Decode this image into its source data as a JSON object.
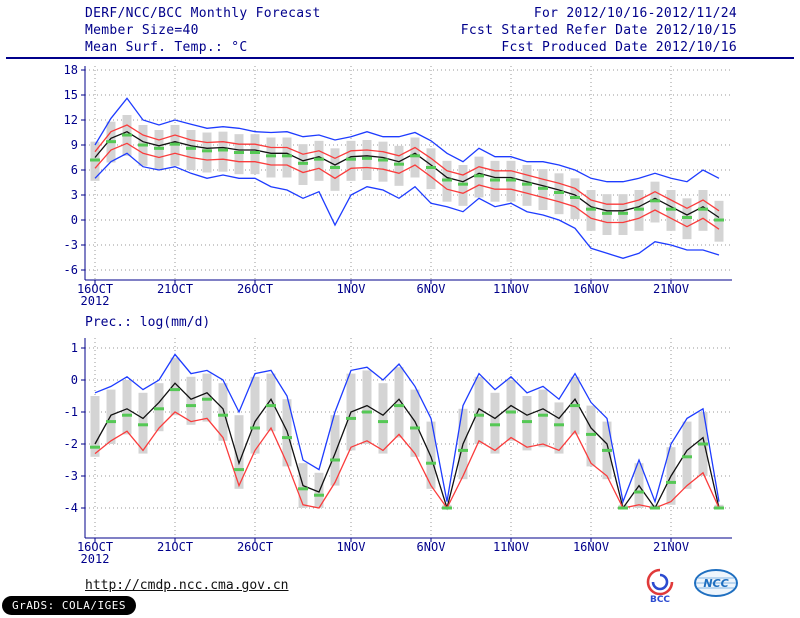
{
  "header": {
    "title": "DERF/NCC/BCC Monthly Forecast",
    "member_size": "Member Size=40",
    "var1_label": "Mean Surf. Temp.: °C",
    "for_range": "For 2012/10/16-2012/11/24",
    "refer_date": "Fcst Started Refer Date 2012/10/15",
    "produced_date": "Fcst Produced Date 2012/10/16"
  },
  "footer": {
    "url": "http://cmdp.ncc.cma.gov.cn",
    "stamp": "GrADS: COLA/IGES",
    "logos": [
      {
        "label": "BCC"
      },
      {
        "label": "NCC"
      }
    ]
  },
  "colors": {
    "text": "#00008b",
    "envelope": "#1e3cff",
    "quartile": "#fa3c3c",
    "median": "#111111",
    "marker": "#55c855",
    "bar": "#d4d4d4"
  },
  "chart_data": [
    {
      "type": "line",
      "title": "Mean Surf. Temp.: °C",
      "xlabel": "",
      "ylabel": "",
      "ylim": [
        -6,
        18
      ],
      "yticks": [
        -6,
        -3,
        0,
        3,
        6,
        9,
        12,
        15,
        18
      ],
      "x_tick_labels": [
        "16OCT",
        "21OCT",
        "26OCT",
        "1NOV",
        "6NOV",
        "11NOV",
        "16NOV",
        "21NOV"
      ],
      "x_tick_days": [
        0,
        5,
        10,
        16,
        21,
        26,
        31,
        36
      ],
      "x_year": "2012",
      "n_points": 40,
      "grid": "dotted",
      "legend": "none",
      "series": [
        {
          "name": "ensemble-max",
          "color": "#1e3cff",
          "values": [
            9.0,
            12.2,
            14.6,
            12.0,
            11.4,
            12.0,
            11.5,
            11.0,
            11.2,
            11.0,
            10.6,
            10.5,
            10.6,
            10.0,
            10.2,
            9.6,
            10.0,
            10.6,
            10.0,
            10.0,
            10.5,
            9.5,
            8.0,
            7.0,
            8.6,
            7.6,
            7.6,
            7.0,
            7.0,
            6.6,
            6.0,
            5.0,
            4.6,
            4.6,
            5.0,
            5.6,
            5.0,
            4.6,
            6.0,
            5.0
          ]
        },
        {
          "name": "upper-quartile",
          "color": "#fa3c3c",
          "values": [
            8.2,
            10.6,
            11.4,
            10.2,
            9.6,
            10.2,
            9.6,
            9.3,
            9.4,
            9.1,
            9.1,
            8.7,
            8.7,
            7.9,
            8.3,
            7.4,
            8.3,
            8.4,
            8.2,
            7.7,
            8.7,
            7.4,
            5.9,
            5.4,
            6.4,
            5.9,
            5.9,
            5.4,
            4.9,
            4.4,
            3.8,
            2.4,
            1.9,
            1.9,
            2.4,
            3.4,
            2.4,
            1.4,
            2.4,
            1.1
          ]
        },
        {
          "name": "median",
          "color": "#111111",
          "values": [
            7.5,
            9.8,
            10.6,
            9.4,
            8.9,
            9.4,
            8.9,
            8.6,
            8.7,
            8.4,
            8.4,
            8.0,
            8.0,
            7.1,
            7.6,
            6.6,
            7.6,
            7.7,
            7.5,
            7.0,
            8.0,
            6.6,
            5.1,
            4.6,
            5.6,
            5.1,
            5.1,
            4.6,
            4.1,
            3.6,
            3.0,
            1.6,
            1.1,
            1.1,
            1.6,
            2.6,
            1.6,
            0.6,
            1.6,
            0.3
          ]
        },
        {
          "name": "lower-quartile",
          "color": "#fa3c3c",
          "values": [
            6.2,
            8.4,
            9.2,
            8.0,
            7.5,
            8.0,
            7.5,
            7.2,
            7.3,
            7.0,
            7.0,
            6.6,
            6.6,
            5.7,
            6.2,
            5.0,
            6.2,
            6.3,
            6.1,
            5.6,
            6.6,
            5.2,
            3.7,
            3.2,
            4.2,
            3.7,
            3.7,
            3.2,
            2.7,
            2.2,
            1.6,
            0.2,
            -0.3,
            -0.3,
            0.2,
            1.2,
            0.2,
            -0.8,
            0.2,
            -1.1
          ]
        },
        {
          "name": "ensemble-min",
          "color": "#1e3cff",
          "values": [
            5.0,
            7.0,
            8.0,
            6.4,
            6.0,
            6.4,
            5.6,
            5.0,
            5.4,
            5.0,
            5.0,
            4.0,
            3.6,
            2.6,
            3.4,
            -0.6,
            3.0,
            4.0,
            3.6,
            2.6,
            4.0,
            2.0,
            1.6,
            1.0,
            2.6,
            1.6,
            2.0,
            1.0,
            0.6,
            0.0,
            -1.0,
            -3.4,
            -4.0,
            -4.6,
            -4.0,
            -2.6,
            -3.0,
            -3.6,
            -3.6,
            -4.2
          ]
        }
      ],
      "markers": {
        "name": "ensemble-mean-dash",
        "color": "#55c855",
        "values": [
          7.2,
          9.4,
          10.2,
          9.0,
          8.6,
          9.1,
          8.6,
          8.3,
          8.4,
          8.1,
          8.1,
          7.7,
          7.7,
          6.8,
          7.3,
          6.3,
          7.3,
          7.4,
          7.2,
          6.7,
          7.7,
          6.3,
          4.8,
          4.3,
          5.3,
          4.8,
          4.8,
          4.3,
          3.8,
          3.3,
          2.7,
          1.3,
          0.8,
          0.8,
          1.3,
          2.3,
          1.3,
          0.3,
          1.3,
          0.0
        ]
      },
      "bars": {
        "color": "#d4d4d4",
        "top": [
          9.4,
          11.8,
          12.6,
          11.4,
          10.8,
          11.4,
          10.8,
          10.5,
          10.6,
          10.3,
          10.3,
          9.9,
          9.9,
          9.1,
          9.5,
          8.6,
          9.5,
          9.6,
          9.4,
          8.9,
          9.9,
          8.6,
          7.1,
          6.6,
          7.6,
          7.1,
          7.1,
          6.6,
          6.1,
          5.6,
          5.0,
          3.6,
          3.1,
          3.1,
          3.6,
          4.6,
          3.6,
          2.6,
          3.6,
          2.3
        ],
        "bottom": [
          4.7,
          6.9,
          7.7,
          6.5,
          6.0,
          6.5,
          6.0,
          5.7,
          5.8,
          5.5,
          5.5,
          5.1,
          5.1,
          4.2,
          4.7,
          3.5,
          4.7,
          4.8,
          4.6,
          4.1,
          5.1,
          3.7,
          2.2,
          1.7,
          2.7,
          2.2,
          2.2,
          1.7,
          1.2,
          0.7,
          0.1,
          -1.3,
          -1.8,
          -1.8,
          -1.3,
          -0.3,
          -1.3,
          -2.3,
          -1.3,
          -2.6
        ]
      }
    },
    {
      "type": "line",
      "title": "Prec.: log(mm/d)",
      "xlabel": "",
      "ylabel": "",
      "ylim": [
        -4,
        1
      ],
      "yticks": [
        -4,
        -3,
        -2,
        -1,
        0,
        1
      ],
      "x_tick_labels": [
        "16OCT",
        "21OCT",
        "26OCT",
        "1NOV",
        "6NOV",
        "11NOV",
        "16NOV",
        "21NOV"
      ],
      "x_tick_days": [
        0,
        5,
        10,
        16,
        21,
        26,
        31,
        36
      ],
      "x_year": "2012",
      "n_points": 40,
      "grid": "dotted",
      "legend": "none",
      "series": [
        {
          "name": "ensemble-max",
          "color": "#1e3cff",
          "values": [
            -0.4,
            -0.2,
            0.1,
            -0.3,
            0.0,
            0.8,
            0.2,
            0.3,
            0.0,
            -1.0,
            0.2,
            0.3,
            -0.5,
            -2.5,
            -2.8,
            -1.0,
            0.3,
            0.4,
            0.0,
            0.5,
            -0.2,
            -1.2,
            -3.8,
            -0.8,
            0.2,
            -0.3,
            0.1,
            -0.4,
            -0.2,
            -0.6,
            0.2,
            -0.7,
            -1.2,
            -3.8,
            -2.5,
            -3.8,
            -2.0,
            -1.2,
            -0.9,
            -3.8
          ]
        },
        {
          "name": "median",
          "color": "#111111",
          "values": [
            -2.0,
            -1.1,
            -0.9,
            -1.2,
            -0.7,
            -0.1,
            -0.6,
            -0.4,
            -0.9,
            -2.6,
            -1.3,
            -0.6,
            -1.6,
            -3.3,
            -3.5,
            -2.3,
            -1.0,
            -0.8,
            -1.1,
            -0.6,
            -1.3,
            -2.4,
            -4.0,
            -2.0,
            -0.9,
            -1.2,
            -0.8,
            -1.1,
            -0.9,
            -1.2,
            -0.6,
            -1.5,
            -2.0,
            -4.0,
            -3.3,
            -4.0,
            -3.0,
            -2.2,
            -1.8,
            -4.0
          ]
        },
        {
          "name": "lower-quartile",
          "color": "#fa3c3c",
          "values": [
            -2.3,
            -1.9,
            -1.6,
            -2.2,
            -1.5,
            -1.0,
            -1.3,
            -1.2,
            -1.8,
            -3.3,
            -2.2,
            -1.5,
            -2.6,
            -3.9,
            -4.0,
            -3.2,
            -2.1,
            -1.9,
            -2.2,
            -1.7,
            -2.3,
            -3.3,
            -4.0,
            -3.0,
            -1.9,
            -2.2,
            -1.8,
            -2.1,
            -2.0,
            -2.2,
            -1.6,
            -2.6,
            -3.0,
            -4.0,
            -3.9,
            -4.0,
            -3.8,
            -3.3,
            -2.9,
            -4.0
          ]
        }
      ],
      "markers": {
        "name": "ensemble-mean-dash",
        "color": "#55c855",
        "values": [
          -2.1,
          -1.3,
          -1.1,
          -1.4,
          -0.9,
          -0.3,
          -0.8,
          -0.6,
          -1.1,
          -2.8,
          -1.5,
          -0.8,
          -1.8,
          -3.4,
          -3.6,
          -2.5,
          -1.2,
          -1.0,
          -1.3,
          -0.8,
          -1.5,
          -2.6,
          -4.0,
          -2.2,
          -1.1,
          -1.4,
          -1.0,
          -1.3,
          -1.1,
          -1.4,
          -0.8,
          -1.7,
          -2.2,
          -4.0,
          -3.5,
          -4.0,
          -3.2,
          -2.4,
          -2.0,
          -4.0
        ]
      },
      "bars": {
        "color": "#d4d4d4",
        "top": [
          -0.5,
          -0.3,
          0.0,
          -0.4,
          -0.1,
          0.7,
          0.1,
          0.2,
          -0.1,
          -1.1,
          0.1,
          0.2,
          -0.6,
          -2.6,
          -2.9,
          -1.1,
          0.2,
          0.3,
          -0.1,
          0.4,
          -0.3,
          -1.3,
          -3.9,
          -0.9,
          0.1,
          -0.4,
          0.0,
          -0.5,
          -0.3,
          -0.7,
          0.1,
          -0.8,
          -1.3,
          -3.9,
          -2.6,
          -3.9,
          -2.1,
          -1.3,
          -1.0,
          -3.9
        ],
        "bottom": [
          -2.4,
          -2.0,
          -1.7,
          -2.3,
          -1.6,
          -1.1,
          -1.4,
          -1.3,
          -1.9,
          -3.4,
          -2.3,
          -1.6,
          -2.7,
          -4.0,
          -4.0,
          -3.3,
          -2.2,
          -2.0,
          -2.3,
          -1.8,
          -2.4,
          -3.4,
          -4.0,
          -3.1,
          -2.0,
          -2.3,
          -1.9,
          -2.2,
          -2.1,
          -2.3,
          -1.7,
          -2.7,
          -3.1,
          -4.0,
          -4.0,
          -4.0,
          -3.9,
          -3.4,
          -3.0,
          -4.0
        ]
      }
    }
  ]
}
